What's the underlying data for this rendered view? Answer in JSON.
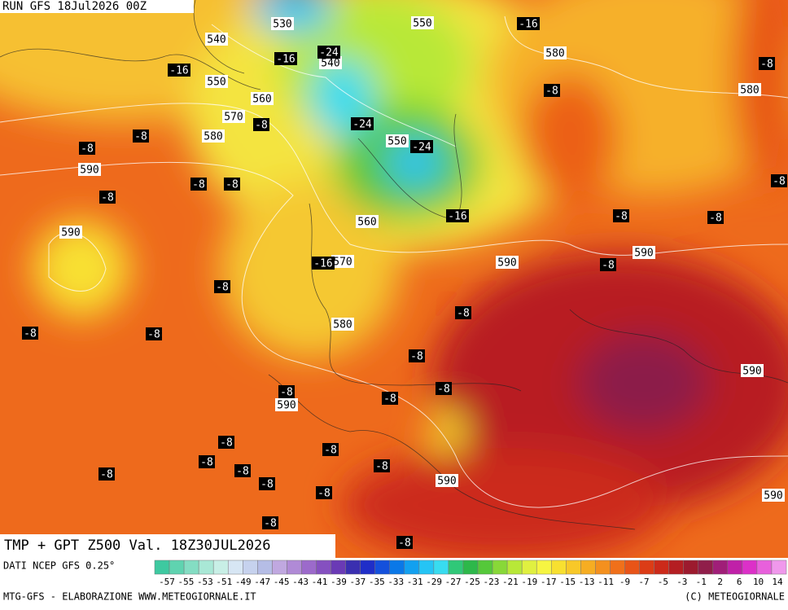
{
  "header": {
    "run": "RUN GFS 18Jul2026 00Z"
  },
  "map": {
    "caption": "TMP + GPT Z500 Val. 18Z30JUL2026",
    "geopotential_labels": [
      "530",
      "550",
      "540",
      "540",
      "550",
      "560",
      "570",
      "580",
      "580",
      "580",
      "590",
      "550",
      "560",
      "570",
      "590",
      "590",
      "590",
      "580",
      "590",
      "590",
      "590",
      "590"
    ],
    "temperature_labels": [
      "-16",
      "-16",
      "-16",
      "-24",
      "-8",
      "-8",
      "-24",
      "-24",
      "-8",
      "-8",
      "-8",
      "-8",
      "-8",
      "-8",
      "-8",
      "-16",
      "-8",
      "-8",
      "-16",
      "-8",
      "-8",
      "-8",
      "-8",
      "-8",
      "-8",
      "-8",
      "-8",
      "-8",
      "-8",
      "-8",
      "-8",
      "-8",
      "-8",
      "-8",
      "-8",
      "-8",
      "-8",
      "-8"
    ]
  },
  "footer": {
    "source": "DATI NCEP GFS 0.25°",
    "credit": "MTG-GFS - ELABORAZIONE WWW.METEOGIORNALE.IT",
    "copyright": "(C) METEOGIORNALE"
  },
  "colorbar": {
    "labels": [
      -57,
      -55,
      -53,
      -51,
      -49,
      -47,
      -45,
      -43,
      -41,
      -39,
      -37,
      -35,
      -33,
      -31,
      -29,
      -27,
      -25,
      -23,
      -21,
      -19,
      -17,
      -15,
      -13,
      -11,
      -9,
      -7,
      -5,
      -3,
      -1,
      2,
      6,
      10,
      14
    ],
    "colors": [
      "#3ec9a0",
      "#5fd3b0",
      "#84ddc3",
      "#a9e8d6",
      "#c8efe6",
      "#d7e6f4",
      "#c6d2ee",
      "#b5bde6",
      "#c0a8e0",
      "#b08ad6",
      "#9c6acb",
      "#8550c0",
      "#6a3ab5",
      "#3a2fb0",
      "#1f2ec8",
      "#1450dc",
      "#0a78e8",
      "#12a0f0",
      "#25c4f5",
      "#38dcf0",
      "#30c878",
      "#2db84a",
      "#55c83a",
      "#88d838",
      "#b8e838",
      "#e0f040",
      "#f6f542",
      "#f8e030",
      "#f8c828",
      "#f6ad22",
      "#f4901e",
      "#f0701a",
      "#e85418",
      "#dc3c16",
      "#cc2a1a",
      "#b41e22",
      "#9c1a2e",
      "#901e4a",
      "#a01e78",
      "#c020a8",
      "#dc30c8",
      "#e860dc",
      "#f098ec"
    ]
  }
}
